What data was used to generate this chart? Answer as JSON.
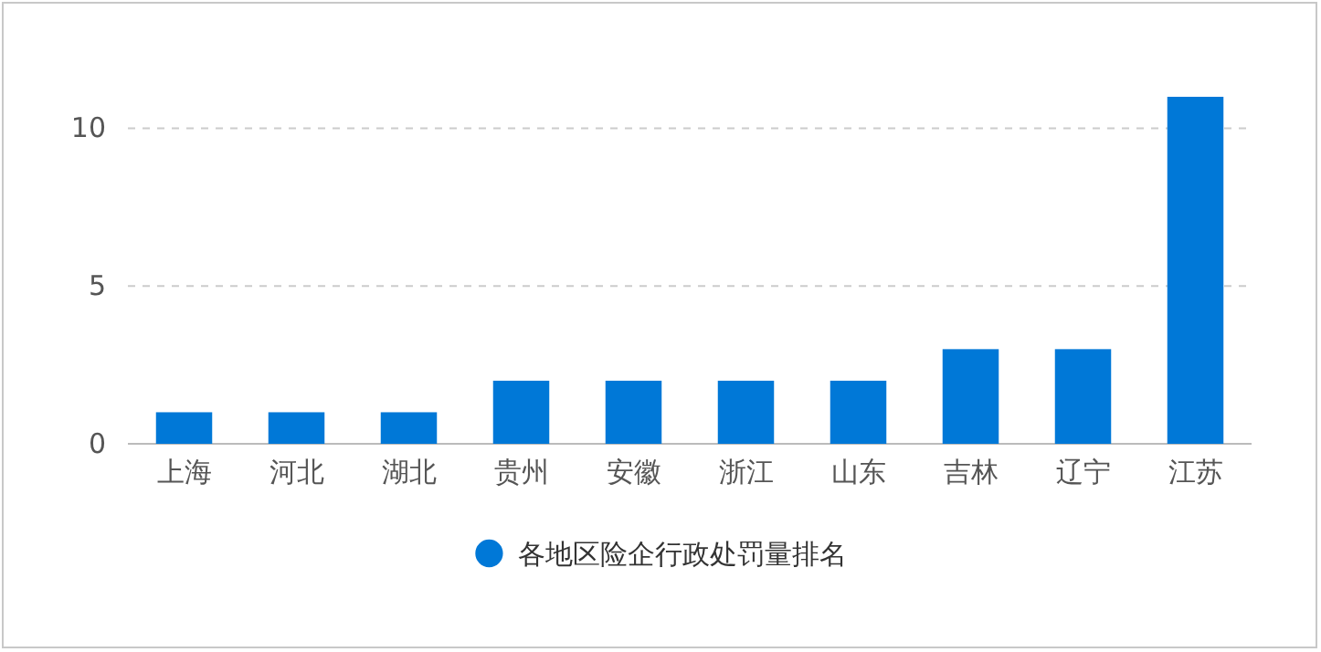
{
  "chart_data": {
    "type": "bar",
    "categories": [
      "上海",
      "河北",
      "湖北",
      "贵州",
      "安徽",
      "浙江",
      "山东",
      "吉林",
      "辽宁",
      "江苏"
    ],
    "series": [
      {
        "name": "各地区险企行政处罚量排名",
        "color": "#0078d7",
        "values": [
          1,
          1,
          1,
          2,
          2,
          2,
          2,
          3,
          3,
          11
        ]
      }
    ],
    "ylim": [
      0,
      11
    ],
    "yticks": [
      0,
      5,
      10
    ],
    "grid": "y",
    "legend": "bottom",
    "marker": "circle"
  }
}
